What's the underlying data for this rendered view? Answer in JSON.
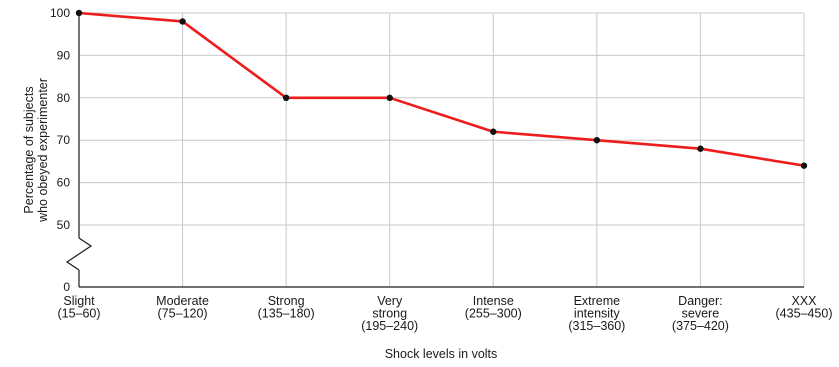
{
  "chart_data": {
    "type": "line",
    "title": "",
    "xlabel": "Shock levels in volts",
    "ylabel_lines": [
      "Percentage of subjects",
      "who obeyed experimenter"
    ],
    "yticks": [
      0,
      50,
      60,
      70,
      80,
      90,
      100
    ],
    "y_break": "between 0 and 50",
    "ylim": [
      50,
      100
    ],
    "grid": true,
    "categories": [
      [
        "Slight",
        "(15–60)"
      ],
      [
        "Moderate",
        "(75–120)"
      ],
      [
        "Strong",
        "(135–180)"
      ],
      [
        "Very",
        "strong",
        "(195–240)"
      ],
      [
        "Intense",
        "(255–300)"
      ],
      [
        "Extreme",
        "intensity",
        "(315–360)"
      ],
      [
        "Danger:",
        "severe",
        "(375–420)"
      ],
      [
        "XXX",
        "(435–450)"
      ]
    ],
    "series": [
      {
        "values": [
          100,
          98,
          80,
          80,
          72,
          70,
          68,
          64
        ]
      }
    ],
    "colors": {
      "line": "#ee1c1c",
      "marker": "#111111",
      "grid": "#c8c8c8",
      "axis": "#1a1a1a"
    }
  }
}
